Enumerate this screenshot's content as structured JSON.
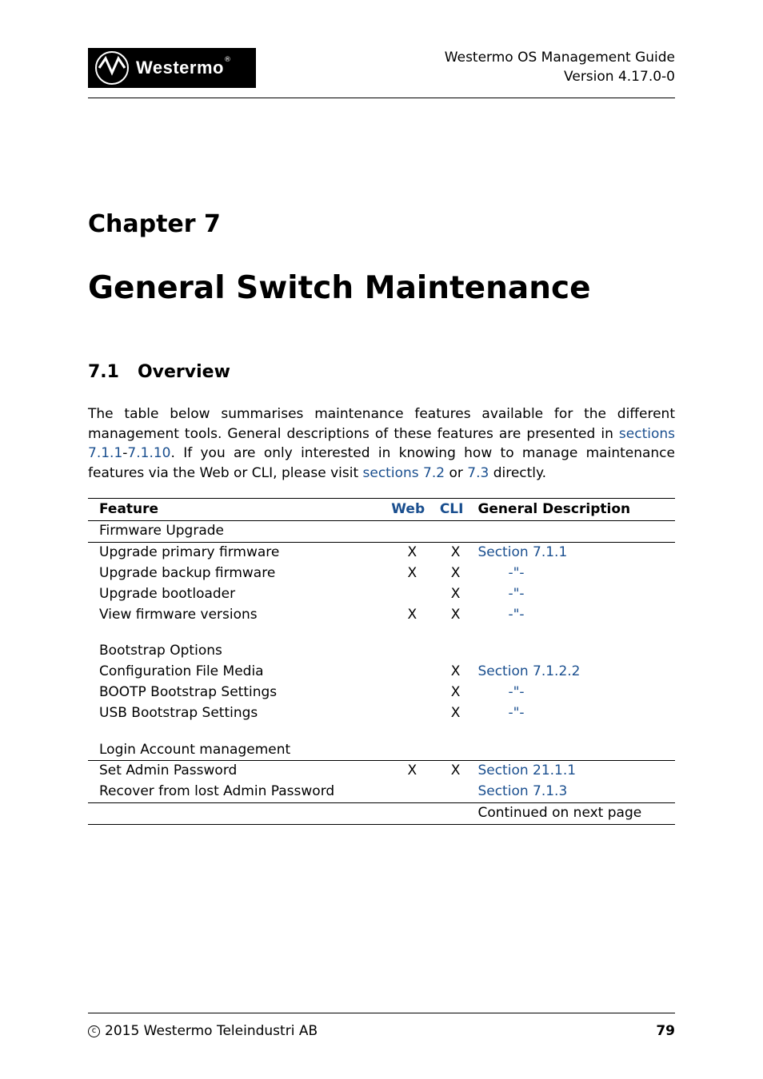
{
  "header": {
    "logo_text": "Westermo",
    "doc_title": "Westermo OS Management Guide",
    "version": "Version 4.17.0-0"
  },
  "chapter_label": "Chapter 7",
  "chapter_title": "General Switch Maintenance",
  "section": {
    "number": "7.1",
    "title": "Overview"
  },
  "intro": {
    "part1": "The table below summarises maintenance features available for the different management tools. General descriptions of these features are presented in ",
    "link1": "sections 7.1.1",
    "dash": "-",
    "link2": "7.1.10",
    "part2": ". If you are only interested in knowing how to manage maintenance features via the Web or CLI, please visit ",
    "link3": "sections 7.2",
    "or": " or ",
    "link4": "7.3",
    "part3": " directly."
  },
  "table": {
    "headers": {
      "feature": "Feature",
      "web": "Web",
      "cli": "CLI",
      "desc": "General Description"
    },
    "groups": [
      {
        "title": "Firmware Upgrade",
        "rows": [
          {
            "feature": "Upgrade primary firmware",
            "web": "X",
            "cli": "X",
            "desc": "Section 7.1.1",
            "desc_link": true
          },
          {
            "feature": "Upgrade backup firmware",
            "web": "X",
            "cli": "X",
            "desc": "-\"-",
            "desc_link": true
          },
          {
            "feature": "Upgrade bootloader",
            "web": "",
            "cli": "X",
            "desc": "-\"-",
            "desc_link": true
          },
          {
            "feature": "View firmware versions",
            "web": "X",
            "cli": "X",
            "desc": "-\"-",
            "desc_link": true
          }
        ]
      },
      {
        "title": "Bootstrap Options",
        "rows": [
          {
            "feature": "Configuration File Media",
            "web": "",
            "cli": "X",
            "desc": "Section 7.1.2.2",
            "desc_link": true
          },
          {
            "feature": "BOOTP Bootstrap Settings",
            "web": "",
            "cli": "X",
            "desc": "-\"-",
            "desc_link": true
          },
          {
            "feature": "USB Bootstrap Settings",
            "web": "",
            "cli": "X",
            "desc": "-\"-",
            "desc_link": true
          }
        ]
      },
      {
        "title": "Login Account management",
        "rows": [
          {
            "feature": "Set Admin Password",
            "web": "X",
            "cli": "X",
            "desc": "Section 21.1.1",
            "desc_link": true
          },
          {
            "feature": "Recover from lost Admin Password",
            "web": "",
            "cli": "",
            "desc": "Section 7.1.3",
            "desc_link": true
          }
        ]
      }
    ],
    "continued": "Continued on next page"
  },
  "footer": {
    "copyright": "2015 Westermo Teleindustri AB",
    "page": "79"
  },
  "colors": {
    "link": "#1a4f8f",
    "text": "#000000",
    "background": "#ffffff"
  }
}
